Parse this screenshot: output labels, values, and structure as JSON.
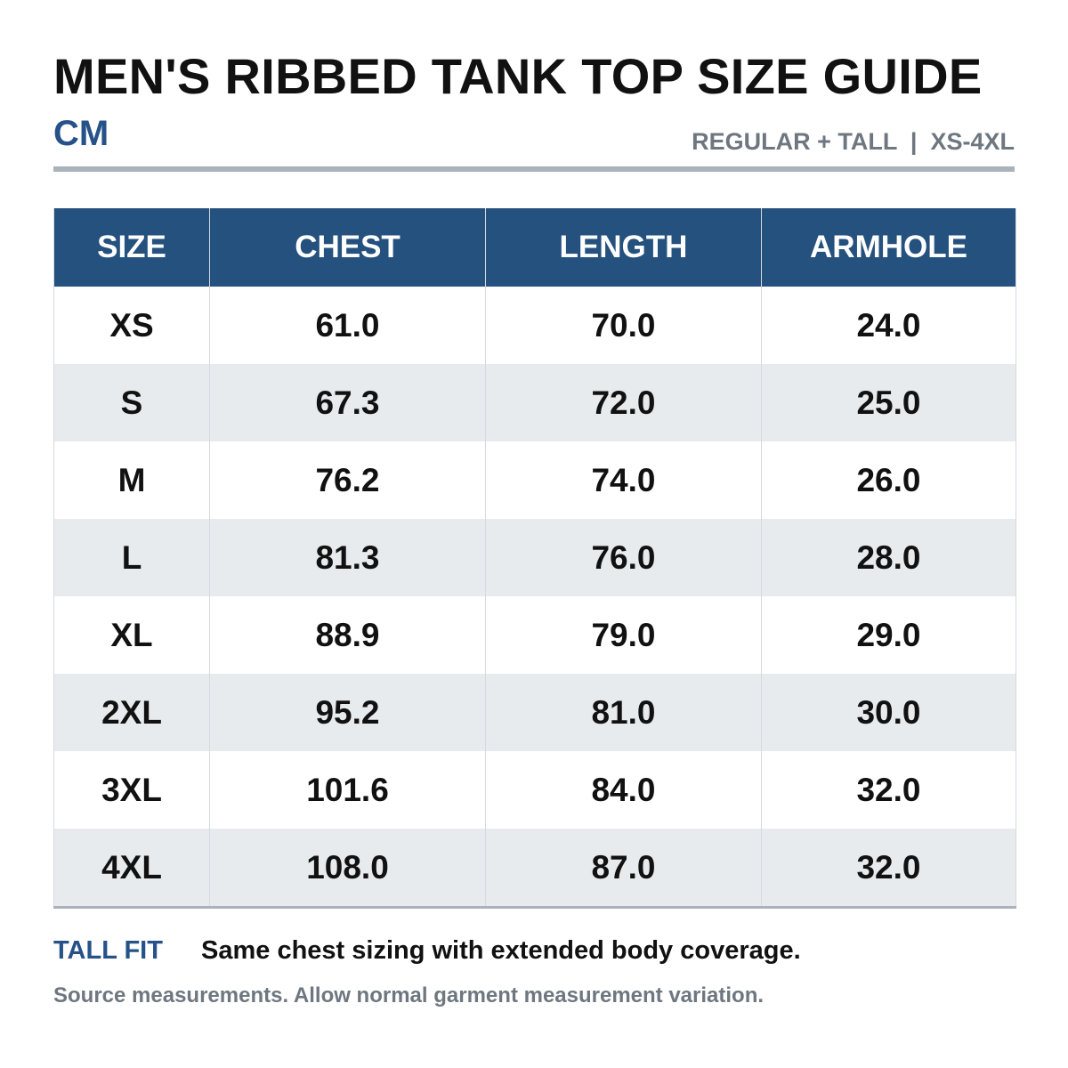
{
  "header": {
    "title": "MEN'S RIBBED TANK TOP SIZE GUIDE",
    "unit": "CM",
    "range": "REGULAR + TALL  |  XS-4XL"
  },
  "table": {
    "columns": [
      "SIZE",
      "CHEST",
      "LENGTH",
      "ARMHOLE"
    ],
    "rows": [
      [
        "XS",
        "61.0",
        "70.0",
        "24.0"
      ],
      [
        "S",
        "67.3",
        "72.0",
        "25.0"
      ],
      [
        "M",
        "76.2",
        "74.0",
        "26.0"
      ],
      [
        "L",
        "81.3",
        "76.0",
        "28.0"
      ],
      [
        "XL",
        "88.9",
        "79.0",
        "29.0"
      ],
      [
        "2XL",
        "95.2",
        "81.0",
        "30.0"
      ],
      [
        "3XL",
        "101.6",
        "84.0",
        "32.0"
      ],
      [
        "4XL",
        "108.0",
        "87.0",
        "32.0"
      ]
    ]
  },
  "footer": {
    "note_label": "TALL FIT",
    "note_text": "Same chest sizing with extended body coverage.",
    "source": "Source measurements. Allow normal garment measurement variation."
  },
  "colors": {
    "header_blue": "#25517f",
    "accent_blue": "#265289",
    "muted_gray": "#6e7780",
    "row_alt": "#e8ebee"
  }
}
